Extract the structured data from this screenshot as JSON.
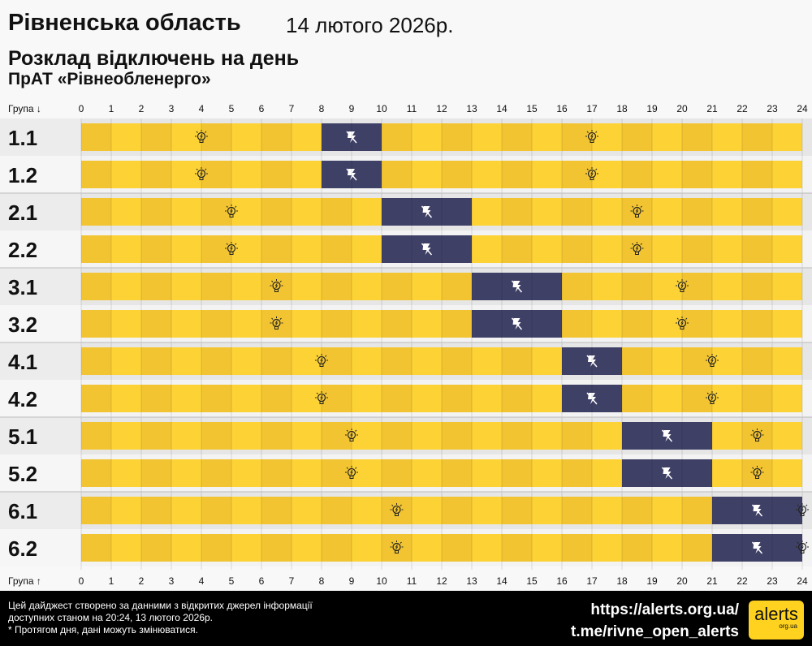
{
  "header": {
    "region": "Рівненська область",
    "date": "14 лютого 2026р.",
    "subtitle": "Розклад відключень на день",
    "company": "ПрАТ «Рівнеобленерго»"
  },
  "axis": {
    "top_label": "Група ↓",
    "bottom_label": "Група ↑",
    "hours": [
      "0",
      "1",
      "2",
      "3",
      "4",
      "5",
      "6",
      "7",
      "8",
      "9",
      "10",
      "11",
      "12",
      "13",
      "14",
      "15",
      "16",
      "17",
      "18",
      "19",
      "20",
      "21",
      "22",
      "23",
      "24"
    ]
  },
  "colors": {
    "on": "#fdd235",
    "on_alt": "#f2c431",
    "off": "#3f4066",
    "row_bg": "#ececec",
    "row_bg_alt": "#f6f6f6"
  },
  "chart_data": {
    "type": "timeline",
    "xlim": [
      0,
      24
    ],
    "groups": [
      {
        "name": "1.1",
        "outages": [
          [
            8,
            10
          ]
        ]
      },
      {
        "name": "1.2",
        "outages": [
          [
            8,
            10
          ]
        ]
      },
      {
        "name": "2.1",
        "outages": [
          [
            10,
            13
          ]
        ]
      },
      {
        "name": "2.2",
        "outages": [
          [
            10,
            13
          ]
        ]
      },
      {
        "name": "3.1",
        "outages": [
          [
            13,
            16
          ]
        ]
      },
      {
        "name": "3.2",
        "outages": [
          [
            13,
            16
          ]
        ]
      },
      {
        "name": "4.1",
        "outages": [
          [
            16,
            18
          ]
        ]
      },
      {
        "name": "4.2",
        "outages": [
          [
            16,
            18
          ]
        ]
      },
      {
        "name": "5.1",
        "outages": [
          [
            18,
            21
          ]
        ]
      },
      {
        "name": "5.2",
        "outages": [
          [
            18,
            21
          ]
        ]
      },
      {
        "name": "6.1",
        "outages": [
          [
            21,
            24
          ]
        ]
      },
      {
        "name": "6.2",
        "outages": [
          [
            21,
            24
          ]
        ]
      }
    ]
  },
  "footer": {
    "note1": "Цей дайджест створено за данними з відкритих джерел інформації",
    "note2": "доступних станом на 20:24, 13 лютого 2026р.",
    "note3": "* Протягом дня, дані можуть змінюватися.",
    "link1": "https://alerts.org.ua/",
    "link2": "t.me/rivne_open_alerts",
    "logo": "alerts",
    "logo_sub": "org.ua"
  }
}
